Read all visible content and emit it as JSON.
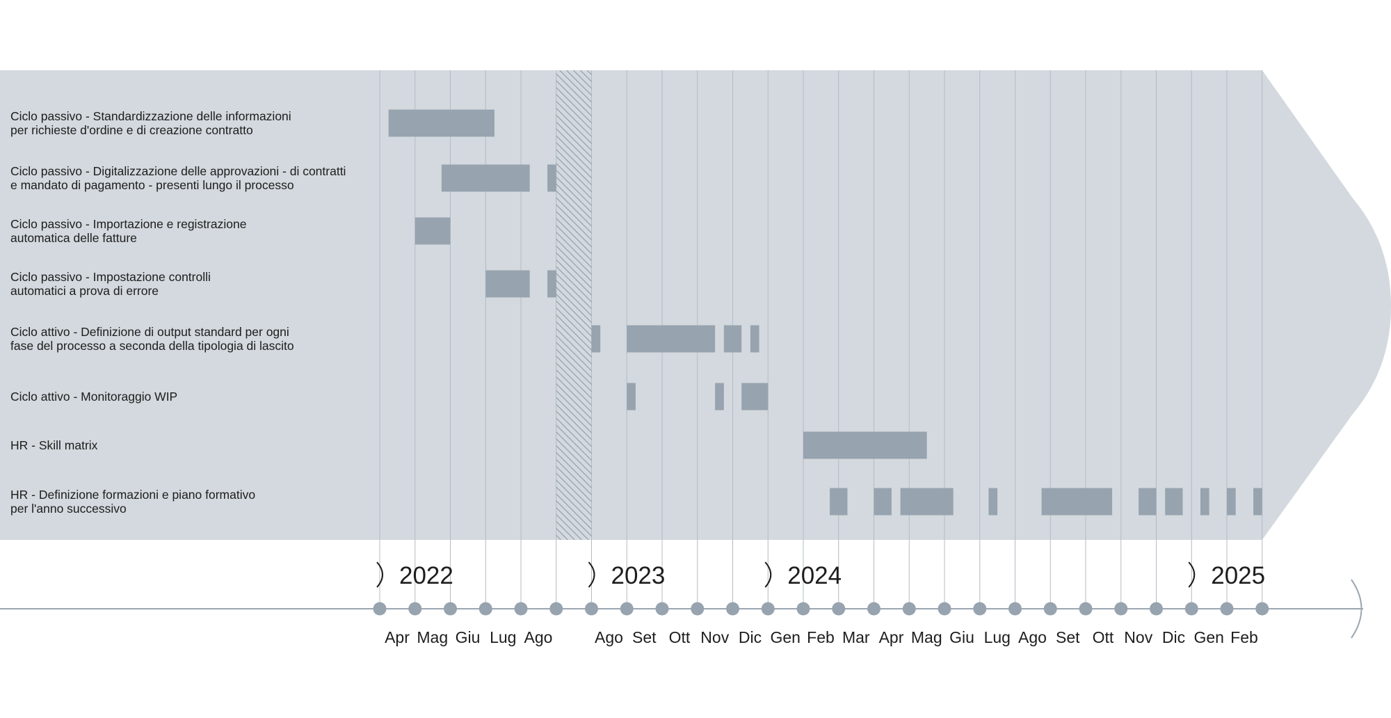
{
  "colors": {
    "panel": "#d3d9de",
    "bar": "#97a3ae",
    "gridline": "#b3bcc4",
    "dot": "#97a3ae",
    "axis": "#9aa6b1",
    "hatch": "#8e9aa6"
  },
  "chart_data": {
    "type": "gantt",
    "title": "",
    "tasks": [
      {
        "label": [
          "Ciclo passivo - Standardizzazione delle informazioni",
          "per richieste d'ordine e di creazione contratto"
        ],
        "segments": [
          [
            0.25,
            3.25
          ]
        ]
      },
      {
        "label": [
          "Ciclo passivo - Digitalizzazione delle approvazioni - di contratti",
          "e mandato di pagamento - presenti lungo il processo"
        ],
        "segments": [
          [
            1.75,
            4.25
          ],
          [
            4.75,
            5.0
          ]
        ]
      },
      {
        "label": [
          "Ciclo passivo - Importazione e registrazione",
          "automatica delle fatture"
        ],
        "segments": [
          [
            1.0,
            2.0
          ]
        ]
      },
      {
        "label": [
          "Ciclo passivo - Impostazione controlli",
          "automatici a prova di errore"
        ],
        "segments": [
          [
            3.0,
            4.25
          ],
          [
            4.75,
            5.0
          ]
        ]
      },
      {
        "label": [
          "Ciclo attivo - Definizione di output standard per ogni",
          "fase del processo a seconda della tipologia di lascito"
        ],
        "segments": [
          [
            6.0,
            6.25
          ],
          [
            7.0,
            9.5
          ],
          [
            9.75,
            10.25
          ],
          [
            10.5,
            10.75
          ]
        ]
      },
      {
        "label": [
          "Ciclo attivo - Monitoraggio WIP"
        ],
        "segments": [
          [
            7.0,
            7.25
          ],
          [
            9.5,
            9.75
          ],
          [
            10.25,
            11.0
          ]
        ]
      },
      {
        "label": [
          "HR - Skill matrix"
        ],
        "segments": [
          [
            12.0,
            15.5
          ]
        ]
      },
      {
        "label": [
          "HR - Definizione formazioni e piano formativo",
          "per l'anno successivo"
        ],
        "segments": [
          [
            12.75,
            13.25
          ],
          [
            14.0,
            14.5
          ],
          [
            14.75,
            16.25
          ],
          [
            17.25,
            17.5
          ],
          [
            18.75,
            20.75
          ],
          [
            21.5,
            22.0
          ],
          [
            22.25,
            22.75
          ],
          [
            23.25,
            23.5
          ],
          [
            24.0,
            24.25
          ],
          [
            24.75,
            25.0
          ]
        ]
      }
    ],
    "break_between": [
      5,
      6
    ],
    "ticks": [
      "Apr",
      "Mag",
      "Giu",
      "Lug",
      "Ago",
      "",
      "Ago",
      "Set",
      "Ott",
      "Nov",
      "Dic",
      "Gen",
      "Feb",
      "Mar",
      "Apr",
      "Mag",
      "Giu",
      "Lug",
      "Ago",
      "Set",
      "Ott",
      "Nov",
      "Dic",
      "Gen",
      "Feb",
      ""
    ],
    "years": [
      {
        "label": "2022",
        "at": 0
      },
      {
        "label": "2023",
        "at": 6
      },
      {
        "label": "2024",
        "at": 11
      },
      {
        "label": "2025",
        "at": 23
      }
    ]
  }
}
